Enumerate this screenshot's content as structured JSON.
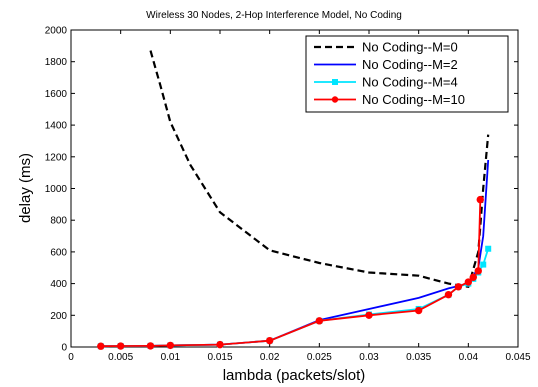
{
  "chart_data": {
    "type": "line",
    "title": "Wireless 30 Nodes, 2-Hop Interference Model, No Coding",
    "xlabel": "lambda (packets/slot)",
    "ylabel": "delay (ms)",
    "xlim": [
      0,
      0.045
    ],
    "ylim": [
      0,
      2000
    ],
    "xticks": [
      0,
      0.005,
      0.01,
      0.015,
      0.02,
      0.025,
      0.03,
      0.035,
      0.04,
      0.045
    ],
    "xtick_labels": [
      "0",
      "0.005",
      "0.01",
      "0.015",
      "0.02",
      "0.025",
      "0.03",
      "0.035",
      "0.04",
      "0.045"
    ],
    "yticks": [
      0,
      200,
      400,
      600,
      800,
      1000,
      1200,
      1400,
      1600,
      1800,
      2000
    ],
    "ytick_labels": [
      "0",
      "200",
      "400",
      "600",
      "800",
      "1000",
      "1200",
      "1400",
      "1600",
      "1800",
      "2000"
    ],
    "grid": false,
    "legend_position": "top-right",
    "series": [
      {
        "name": "No Coding--M=0",
        "color": "#000000",
        "style": "dashed",
        "marker": "none",
        "x": [
          0.008,
          0.009,
          0.01,
          0.012,
          0.015,
          0.02,
          0.025,
          0.03,
          0.035,
          0.038,
          0.04,
          0.041,
          0.0415,
          0.042
        ],
        "y": [
          1870,
          1650,
          1420,
          1150,
          850,
          610,
          530,
          470,
          450,
          400,
          380,
          600,
          1000,
          1340
        ]
      },
      {
        "name": "No Coding--M=2",
        "color": "#0000ff",
        "style": "solid",
        "marker": "none",
        "x": [
          0.003,
          0.005,
          0.008,
          0.01,
          0.015,
          0.02,
          0.025,
          0.03,
          0.035,
          0.038,
          0.04,
          0.041,
          0.0415,
          0.042
        ],
        "y": [
          5,
          6,
          7,
          10,
          15,
          40,
          170,
          240,
          310,
          370,
          400,
          500,
          700,
          1180
        ]
      },
      {
        "name": "No Coding--M=4",
        "color": "#00e5ff",
        "style": "solid",
        "marker": "square",
        "x": [
          0.003,
          0.005,
          0.008,
          0.01,
          0.015,
          0.02,
          0.025,
          0.03,
          0.035,
          0.038,
          0.039,
          0.04,
          0.0405,
          0.041,
          0.0415,
          0.042
        ],
        "y": [
          5,
          6,
          7,
          10,
          15,
          40,
          165,
          205,
          240,
          330,
          380,
          400,
          430,
          470,
          520,
          620
        ]
      },
      {
        "name": "No Coding--M=10",
        "color": "#ff0000",
        "style": "solid",
        "marker": "circle",
        "x": [
          0.003,
          0.005,
          0.008,
          0.01,
          0.015,
          0.02,
          0.025,
          0.03,
          0.035,
          0.038,
          0.039,
          0.04,
          0.0405,
          0.041,
          0.0412
        ],
        "y": [
          5,
          6,
          7,
          10,
          15,
          40,
          165,
          200,
          230,
          330,
          380,
          410,
          440,
          480,
          930
        ]
      }
    ]
  }
}
